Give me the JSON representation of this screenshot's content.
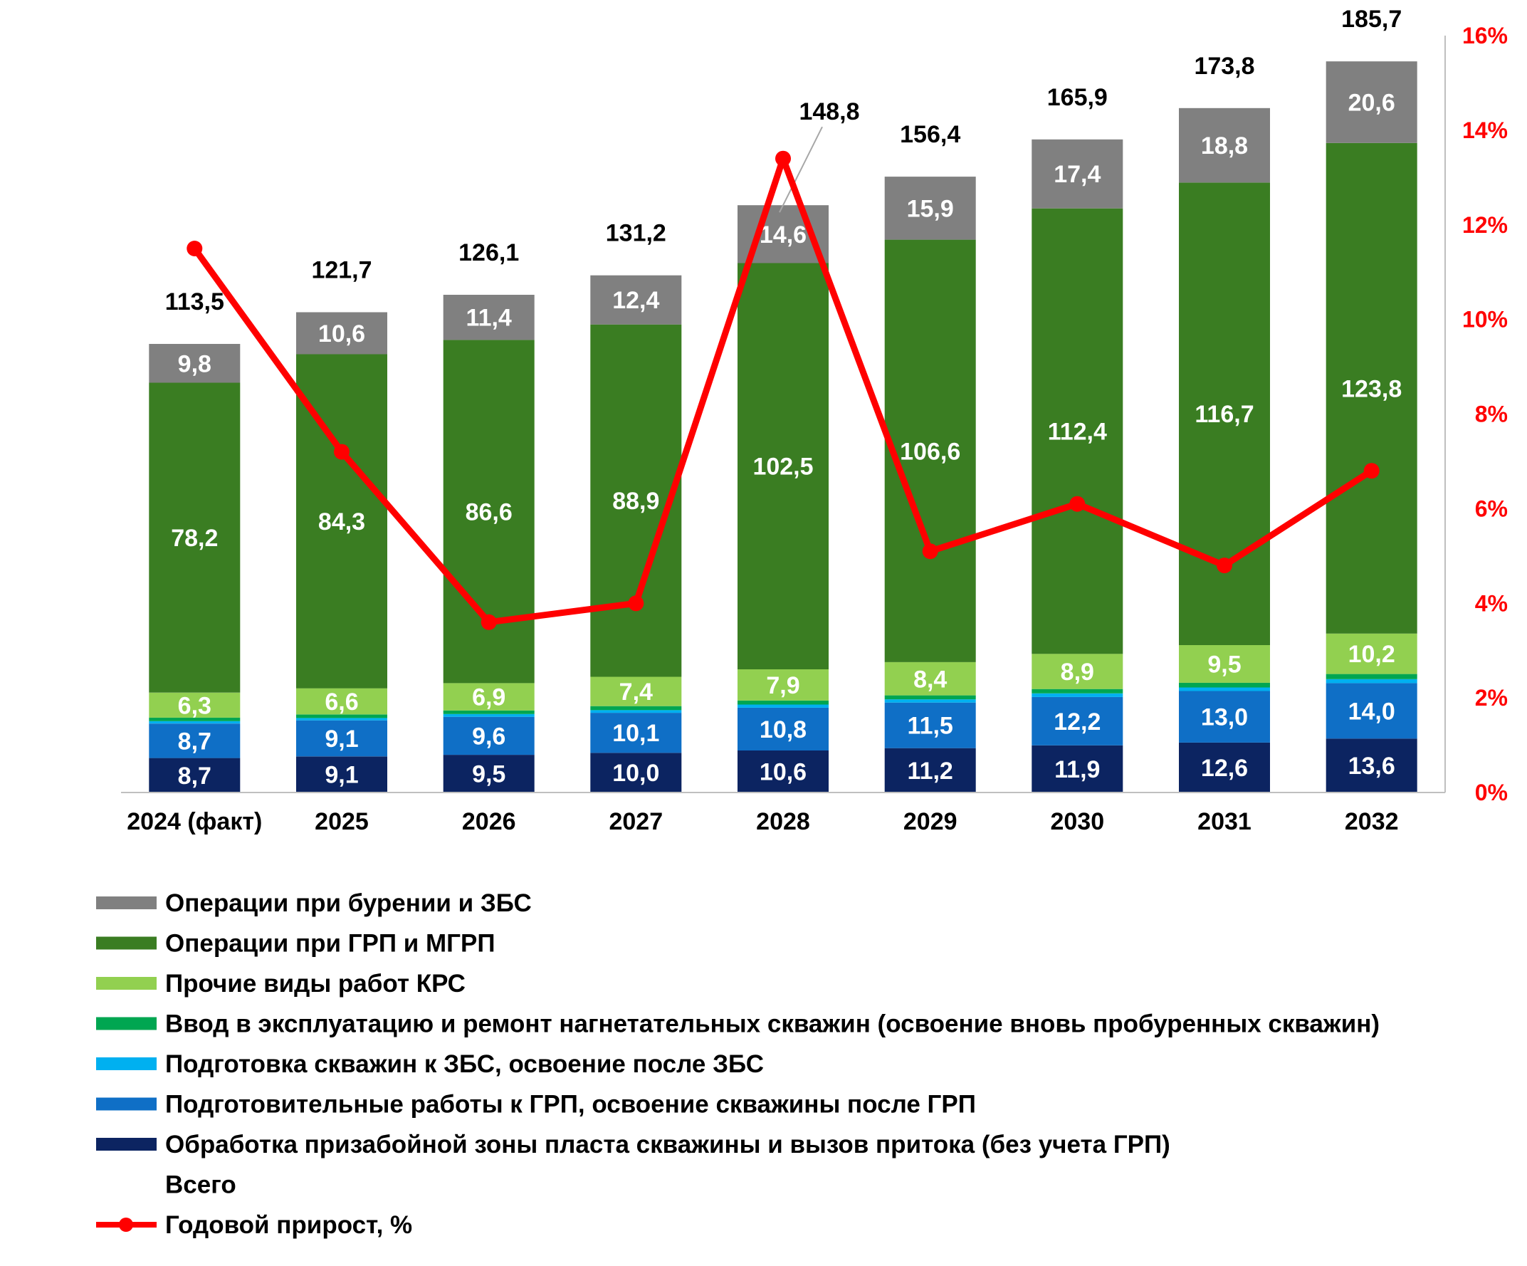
{
  "chart_data": {
    "type": "bar",
    "stacked": true,
    "title": "",
    "xlabel": "",
    "ylabel": "",
    "categories": [
      "2024 (факт)",
      "2025",
      "2026",
      "2027",
      "2028",
      "2029",
      "2030",
      "2031",
      "2032"
    ],
    "series": [
      {
        "name": "Обработка призабойной зоны пласта скважины и вызов притока (без учета ГРП)",
        "color": "#0c2461",
        "values": [
          8.7,
          9.1,
          9.5,
          10.0,
          10.6,
          11.2,
          11.9,
          12.6,
          13.6
        ],
        "labels": [
          "8,7",
          "9,1",
          "9,5",
          "10,0",
          "10,6",
          "11,2",
          "11,9",
          "12,6",
          "13,6"
        ]
      },
      {
        "name": "Подготовительные работы к ГРП, освоение скважины после ГРП",
        "color": "#0f6fc6",
        "values": [
          8.7,
          9.1,
          9.6,
          10.1,
          10.8,
          11.5,
          12.2,
          13.0,
          14.0
        ],
        "labels": [
          "8,7",
          "9,1",
          "9,6",
          "10,1",
          "10,8",
          "11,5",
          "12,2",
          "13,0",
          "14,0"
        ]
      },
      {
        "name": "Подготовка скважин к ЗБС, освоение после ЗБС",
        "color": "#00b0f0",
        "values": [
          0.6,
          0.6,
          0.7,
          0.7,
          0.8,
          0.8,
          0.9,
          0.9,
          1.0
        ],
        "labels": []
      },
      {
        "name": "Ввод в эксплуатацию и ремонт нагнетательных скважин (освоение вновь пробуренных скважин)",
        "color": "#00a651",
        "values": [
          0.9,
          0.9,
          0.9,
          1.0,
          1.0,
          1.0,
          1.1,
          1.2,
          1.3
        ],
        "labels": []
      },
      {
        "name": "Прочие виды работ КРС",
        "color": "#92d050",
        "values": [
          6.3,
          6.6,
          6.9,
          7.4,
          7.9,
          8.4,
          8.9,
          9.5,
          10.2
        ],
        "labels": [
          "6,3",
          "6,6",
          "6,9",
          "7,4",
          "7,9",
          "8,4",
          "8,9",
          "9,5",
          "10,2"
        ]
      },
      {
        "name": "Операции при ГРП и МГРП",
        "color": "#3a7d22",
        "values": [
          78.2,
          84.3,
          86.6,
          88.9,
          102.5,
          106.6,
          112.4,
          116.7,
          123.8
        ],
        "labels": [
          "78,2",
          "84,3",
          "86,6",
          "88,9",
          "102,5",
          "106,6",
          "112,4",
          "116,7",
          "123,8"
        ]
      },
      {
        "name": "Операции при бурении и ЗБС",
        "color": "#808080",
        "values": [
          9.8,
          10.6,
          11.4,
          12.4,
          14.6,
          15.9,
          17.4,
          18.8,
          20.6
        ],
        "labels": [
          "9,8",
          "10,6",
          "11,4",
          "12,4",
          "14,6",
          "15,9",
          "17,4",
          "18,8",
          "20,6"
        ]
      }
    ],
    "totals": {
      "name": "Всего",
      "values": [
        113.5,
        121.7,
        126.1,
        131.2,
        148.8,
        156.4,
        165.9,
        173.8,
        185.7
      ],
      "labels": [
        "113,5",
        "121,7",
        "126,1",
        "131,2",
        "148,8",
        "156,4",
        "165,9",
        "173,8",
        "185,7"
      ]
    },
    "line": {
      "name": "Годовой прирост, %",
      "color": "#ff0000",
      "axis": "secondary",
      "values": [
        11.5,
        7.2,
        3.6,
        4.0,
        13.4,
        5.1,
        6.1,
        4.8,
        6.8
      ]
    },
    "ylim": [
      0,
      191
    ],
    "y2lim": [
      0,
      16
    ],
    "y2ticks": [
      "0%",
      "2%",
      "4%",
      "6%",
      "8%",
      "10%",
      "12%",
      "14%",
      "16%"
    ],
    "grid": false,
    "legend": {
      "position": "bottom-left",
      "items": [
        {
          "label": "Операции при бурении и ЗБС",
          "kind": "bar",
          "color": "#808080"
        },
        {
          "label": "Операции при ГРП и МГРП",
          "kind": "bar",
          "color": "#3a7d22"
        },
        {
          "label": "Прочие виды работ КРС",
          "kind": "bar",
          "color": "#92d050"
        },
        {
          "label": "Ввод в эксплуатацию и ремонт нагнетательных скважин (освоение вновь пробуренных скважин)",
          "kind": "bar",
          "color": "#00a651"
        },
        {
          "label": "Подготовка скважин к ЗБС, освоение после ЗБС",
          "kind": "bar",
          "color": "#00b0f0"
        },
        {
          "label": "Подготовительные работы к ГРП, освоение скважины после ГРП",
          "kind": "bar",
          "color": "#0f6fc6"
        },
        {
          "label": "Обработка призабойной зоны пласта скважины и вызов притока (без учета ГРП)",
          "kind": "bar",
          "color": "#0c2461"
        },
        {
          "label": "Всего",
          "kind": "none",
          "color": ""
        },
        {
          "label": "Годовой прирост, %",
          "kind": "line",
          "color": "#ff0000"
        }
      ]
    }
  }
}
